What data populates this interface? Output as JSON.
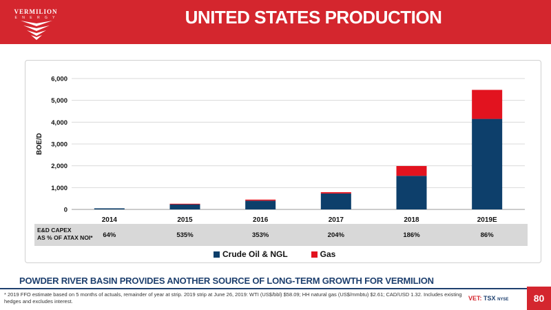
{
  "brand": {
    "name": "VERMILION",
    "sub": "E N E R G Y"
  },
  "header": {
    "title": "UNITED STATES PRODUCTION"
  },
  "colors": {
    "red": "#d4262e",
    "navy": "#1d3f6e",
    "oil": "#0d3f6b",
    "gas": "#e2131f"
  },
  "chart_data": {
    "type": "bar",
    "stacked": true,
    "categories": [
      "2014",
      "2015",
      "2016",
      "2017",
      "2018",
      "2019E"
    ],
    "series": [
      {
        "name": "Crude Oil & NGL",
        "values": [
          50,
          240,
          400,
          730,
          1540,
          4150
        ]
      },
      {
        "name": "Gas",
        "values": [
          0,
          20,
          50,
          60,
          450,
          1330
        ]
      }
    ],
    "ylabel": "BOE/D",
    "ylim": [
      0,
      6000
    ],
    "yticks": [
      "0",
      "1,000",
      "2,000",
      "3,000",
      "4,000",
      "5,000",
      "6,000"
    ],
    "grid": true,
    "legend": "bottom"
  },
  "capex": {
    "label_line1": "E&D CAPEX",
    "label_line2": "AS % OF ATAX NOI*",
    "values": [
      "64%",
      "535%",
      "353%",
      "204%",
      "186%",
      "86%"
    ]
  },
  "legend": {
    "oil": "Crude Oil & NGL",
    "gas": "Gas"
  },
  "footer": {
    "tagline": "POWDER RIVER BASIN PROVIDES ANOTHER SOURCE OF LONG-TERM GROWTH FOR VERMILION",
    "footnote": "* 2019 FFO estimate based on 5 months of actuals, remainder of year at strip. 2019 strip at June 26, 2019:  WTI (US$/bbl) $58.09; HH natural gas (US$/mmbtu) $2.61; CAD/USD 1.32.  Includes existing hedges and excludes interest.",
    "ticker_vet": "VET:",
    "ticker_tsx": "TSX",
    "ticker_nyse": "NYSE",
    "page": "80"
  }
}
